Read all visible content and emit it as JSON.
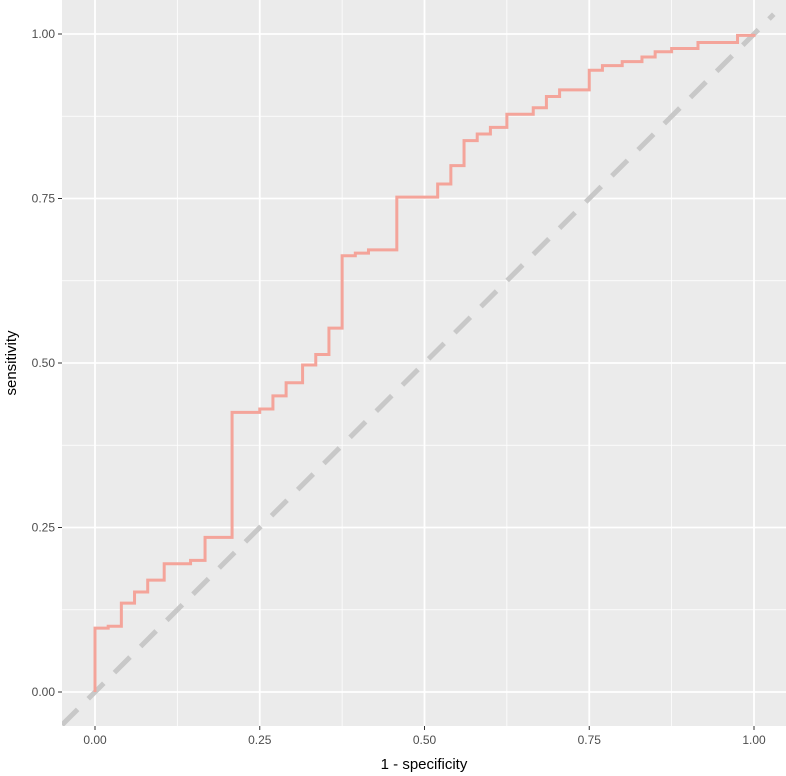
{
  "chart_data": {
    "type": "line",
    "xlabel": "1 - specificity",
    "ylabel": "sensitivity",
    "xlim": [
      -0.05,
      1.02
    ],
    "ylim": [
      -0.04,
      1.04
    ],
    "x_ticks": [
      "0.00",
      "0.25",
      "0.50",
      "0.75",
      "1.00"
    ],
    "y_ticks": [
      "0.00",
      "0.25",
      "0.50",
      "0.75",
      "1.00"
    ],
    "grid": true,
    "legend": "none",
    "colors": {
      "panel_background": "#ebebeb",
      "grid": "#ffffff",
      "roc_line": "#f4a49a",
      "reference_line": "#c8c8c8"
    },
    "series": [
      {
        "style": "step",
        "points": [
          [
            0.0,
            0.0
          ],
          [
            0.0,
            0.097
          ],
          [
            0.02,
            0.1
          ],
          [
            0.04,
            0.135
          ],
          [
            0.06,
            0.152
          ],
          [
            0.08,
            0.17
          ],
          [
            0.105,
            0.195
          ],
          [
            0.145,
            0.2
          ],
          [
            0.167,
            0.235
          ],
          [
            0.208,
            0.425
          ],
          [
            0.25,
            0.43
          ],
          [
            0.27,
            0.45
          ],
          [
            0.29,
            0.47
          ],
          [
            0.315,
            0.497
          ],
          [
            0.335,
            0.513
          ],
          [
            0.355,
            0.553
          ],
          [
            0.375,
            0.663
          ],
          [
            0.395,
            0.667
          ],
          [
            0.415,
            0.672
          ],
          [
            0.458,
            0.752
          ],
          [
            0.52,
            0.772
          ],
          [
            0.54,
            0.8
          ],
          [
            0.56,
            0.838
          ],
          [
            0.58,
            0.848
          ],
          [
            0.6,
            0.858
          ],
          [
            0.625,
            0.878
          ],
          [
            0.665,
            0.888
          ],
          [
            0.685,
            0.905
          ],
          [
            0.705,
            0.915
          ],
          [
            0.75,
            0.945
          ],
          [
            0.77,
            0.952
          ],
          [
            0.8,
            0.958
          ],
          [
            0.83,
            0.965
          ],
          [
            0.85,
            0.973
          ],
          [
            0.875,
            0.978
          ],
          [
            0.915,
            0.987
          ],
          [
            0.975,
            0.998
          ],
          [
            1.0,
            1.0
          ]
        ]
      },
      {
        "style": "dashed",
        "points": [
          [
            -0.05,
            -0.05
          ],
          [
            1.03,
            1.03
          ]
        ]
      }
    ]
  }
}
